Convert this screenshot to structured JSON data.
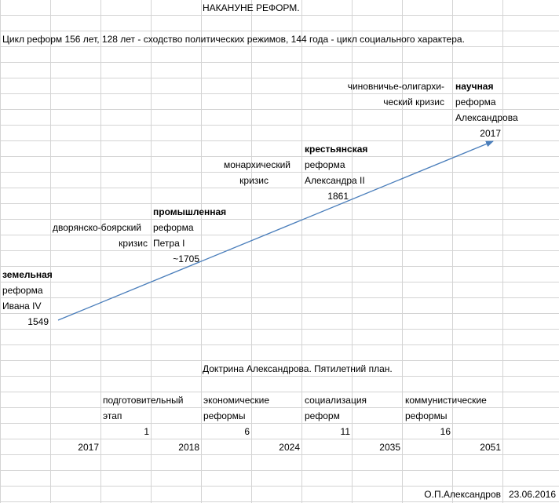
{
  "sheet": {
    "title": "НАКАНУНЕ РЕФОРМ.",
    "subtitle": "Цикл реформ 156 лет, 128 лет - сходство политических режимов, 144 года - цикл социального характера.",
    "timeline": {
      "reform1": {
        "name": "земельная",
        "line1": "реформа",
        "line2": "Ивана IV",
        "year": "1549"
      },
      "crisis1": {
        "line1": "дворянско-боярский",
        "line2": "кризис"
      },
      "reform2": {
        "name": "промышленная",
        "line1": "реформа",
        "line2": "Петра I",
        "year": "~1705"
      },
      "crisis2": {
        "line1": "монархический",
        "line2": "кризис"
      },
      "reform3": {
        "name": "крестьянская",
        "line1": "реформа",
        "line2": "Александра II",
        "year": "1861"
      },
      "crisis3": {
        "line1": "чиновничье-олигархи-",
        "line2": "ческий кризис"
      },
      "reform4": {
        "name": "научная",
        "line1": "реформа",
        "line2": "Александрова",
        "year": "2017"
      }
    },
    "doctrine_title": "Доктрина Александрова. Пятилетний план.",
    "plan": [
      {
        "line1": "подготовительный",
        "line2": "этап",
        "number": "1"
      },
      {
        "line1": "экономические",
        "line2": "реформы",
        "number": "6"
      },
      {
        "line1": "социализация",
        "line2": "реформ",
        "number": "11"
      },
      {
        "line1": "коммунистические",
        "line2": "реформы",
        "number": "16"
      }
    ],
    "years": [
      "2017",
      "2018",
      "2024",
      "2035",
      "2051"
    ],
    "signature": "О.П.Александров",
    "date": "23.06.2016",
    "colors": {
      "grid": "#d4d4d4",
      "arrow": "#4a7ebb"
    }
  }
}
